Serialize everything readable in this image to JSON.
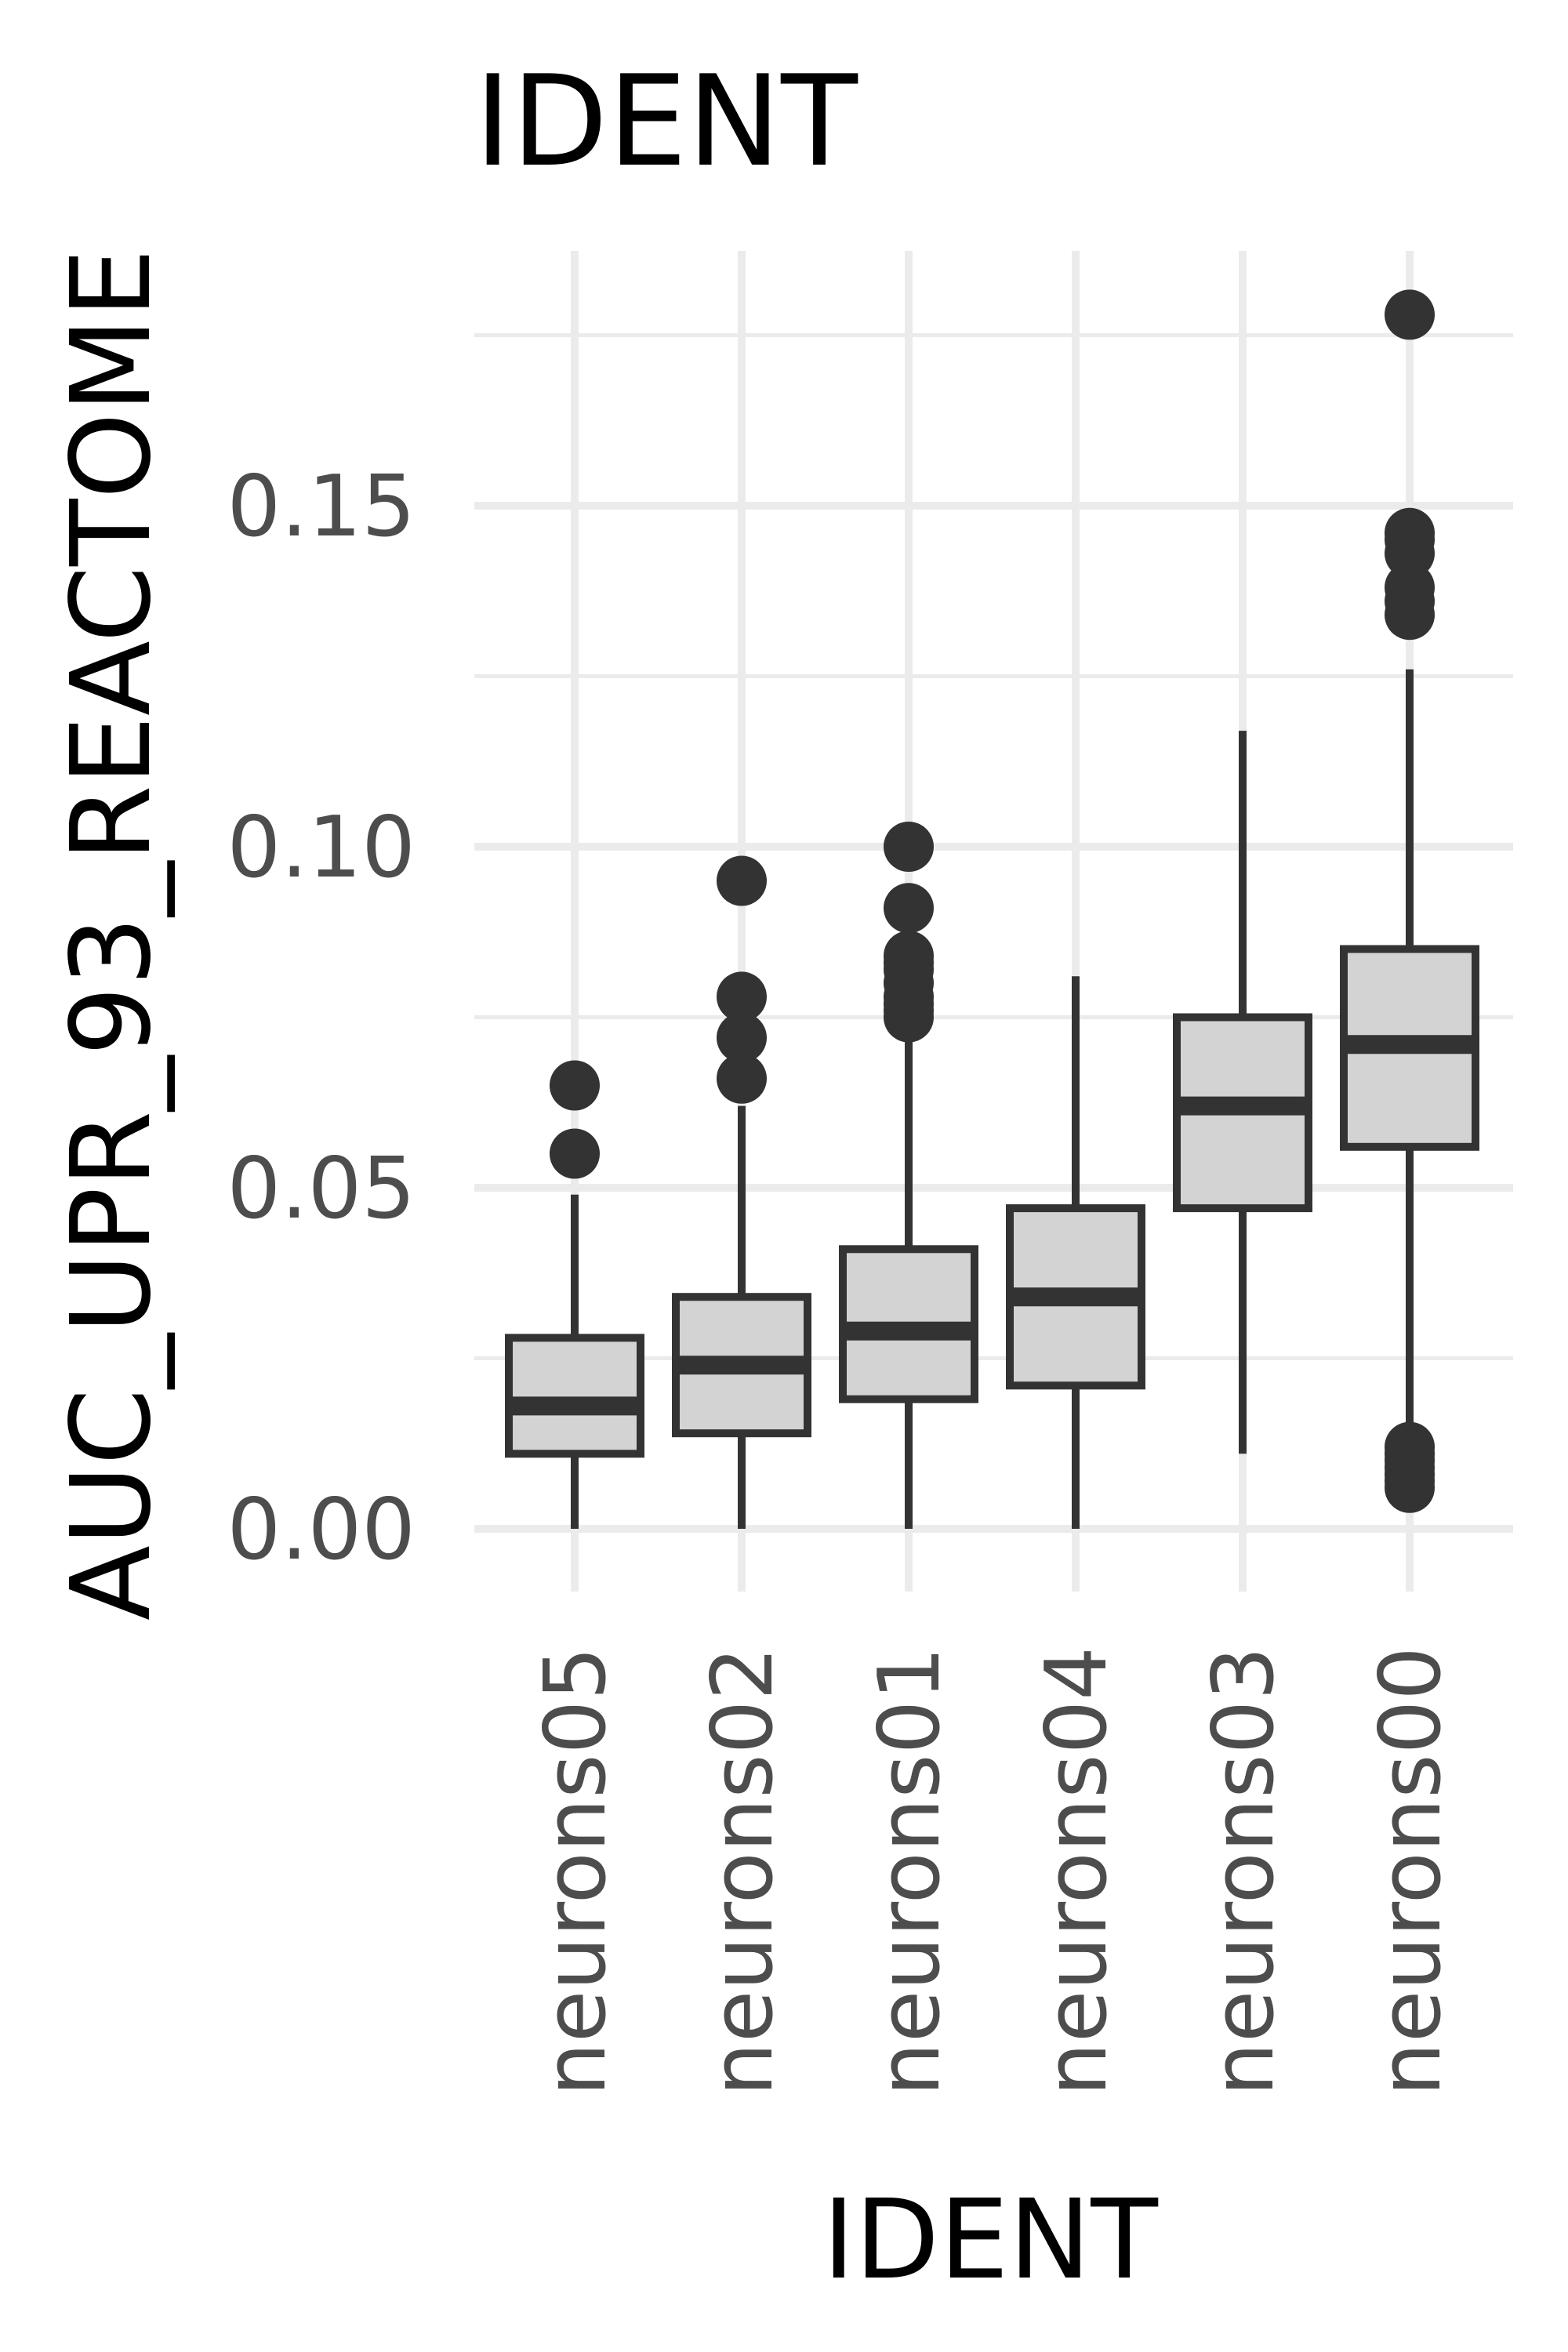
{
  "chart_data": {
    "type": "box",
    "title": "IDENT",
    "xlabel": "IDENT",
    "ylabel": "AUC_UPR_93_REACTOME",
    "ylim": [
      -0.007,
      0.185
    ],
    "yticks": [
      0.0,
      0.05,
      0.1,
      0.15
    ],
    "ytick_labels": [
      "0.00",
      "0.05",
      "0.10",
      "0.15"
    ],
    "grid": true,
    "legend": "none",
    "box_fill": "#d3d3d3",
    "line_color": "#333333",
    "categories": [
      "neurons05",
      "neurons02",
      "neurons01",
      "neurons04",
      "neurons03",
      "neurons00"
    ],
    "boxes": [
      {
        "category": "neurons05",
        "whisker_low": 0.0,
        "q1": 0.011,
        "median": 0.018,
        "q3": 0.028,
        "whisker_high": 0.049,
        "outliers": [
          0.055,
          0.065
        ]
      },
      {
        "category": "neurons02",
        "whisker_low": 0.0,
        "q1": 0.014,
        "median": 0.024,
        "q3": 0.034,
        "whisker_high": 0.062,
        "outliers": [
          0.066,
          0.072,
          0.078,
          0.095
        ]
      },
      {
        "category": "neurons01",
        "whisker_low": 0.0,
        "q1": 0.019,
        "median": 0.029,
        "q3": 0.041,
        "whisker_high": 0.074,
        "outliers": [
          0.075,
          0.076,
          0.077,
          0.078,
          0.08,
          0.082,
          0.083,
          0.084,
          0.091,
          0.1
        ]
      },
      {
        "category": "neurons04",
        "whisker_low": 0.0,
        "q1": 0.021,
        "median": 0.034,
        "q3": 0.047,
        "whisker_high": 0.081,
        "outliers": []
      },
      {
        "category": "neurons03",
        "whisker_low": 0.011,
        "q1": 0.047,
        "median": 0.062,
        "q3": 0.075,
        "whisker_high": 0.117,
        "outliers": []
      },
      {
        "category": "neurons00",
        "whisker_low": 0.013,
        "q1": 0.056,
        "median": 0.071,
        "q3": 0.085,
        "whisker_high": 0.126,
        "outliers": [
          0.006,
          0.007,
          0.008,
          0.009,
          0.01,
          0.011,
          0.012,
          0.134,
          0.136,
          0.138,
          0.143,
          0.145,
          0.146,
          0.178
        ]
      }
    ]
  }
}
